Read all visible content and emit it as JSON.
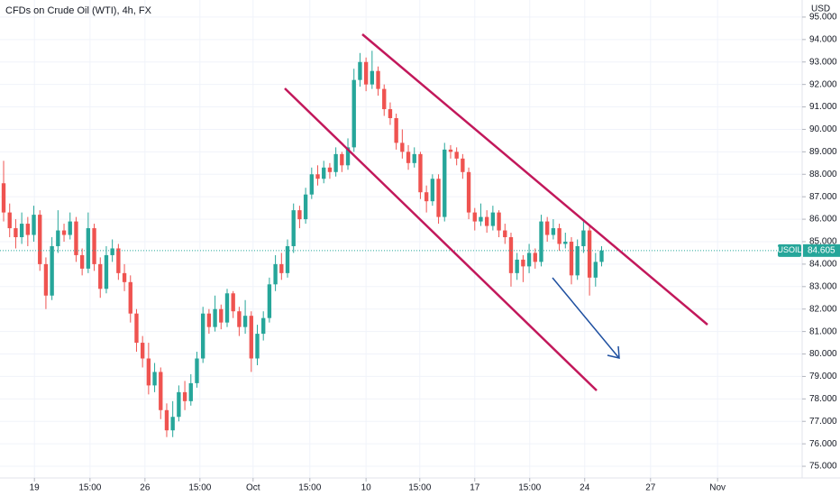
{
  "chart_data": {
    "type": "candlestick",
    "title": "CFDs on Crude Oil (WTI), 4h, FX",
    "currency": "USD",
    "symbol": "USOIL",
    "up_color": "#26a69a",
    "down_color": "#ef5350",
    "grid": true,
    "open": [
      87.6,
      86.3,
      85.6,
      85.2,
      85.8,
      85.3,
      86.2,
      84.0,
      82.6,
      84.8,
      85.5,
      85.3,
      85.9,
      84.4,
      83.8,
      85.6,
      84.0,
      82.9,
      84.4,
      84.7,
      83.6,
      83.2,
      81.8,
      80.5,
      79.8,
      78.6,
      79.2,
      77.5,
      76.6,
      77.2,
      78.3,
      77.9,
      78.7,
      79.8,
      81.8,
      81.2,
      82.0,
      81.4,
      82.7,
      81.9,
      81.2,
      81.7,
      79.8,
      80.9,
      81.6,
      83.1,
      84.0,
      83.6,
      84.8,
      86.4,
      86.0,
      87.1,
      88.0,
      87.8,
      88.3,
      88.1,
      88.9,
      88.4,
      89.2,
      92.2,
      93.0,
      92.0,
      92.6,
      91.8,
      90.9,
      90.5,
      89.4,
      89.0,
      88.5,
      88.9,
      87.2,
      86.8,
      87.8,
      86.1,
      89.1,
      89.0,
      88.7,
      88.1,
      86.3,
      85.9,
      86.1,
      85.7,
      86.3,
      85.5,
      85.2,
      83.6,
      84.2,
      83.9,
      84.5,
      84.1,
      85.9,
      85.3,
      85.6,
      84.9,
      85.0,
      83.5,
      84.8,
      85.5,
      83.4,
      84.1
    ],
    "high": [
      88.6,
      86.7,
      86.0,
      86.3,
      86.1,
      86.6,
      86.4,
      84.3,
      85.2,
      86.4,
      85.8,
      86.3,
      86.1,
      84.7,
      86.3,
      85.8,
      84.3,
      84.8,
      85.1,
      84.9,
      84.0,
      83.5,
      82.0,
      80.8,
      80.5,
      79.6,
      79.4,
      77.8,
      77.9,
      78.6,
      78.8,
      79.1,
      80.1,
      82.1,
      82.0,
      82.6,
      82.2,
      82.9,
      82.8,
      82.1,
      82.4,
      81.9,
      81.3,
      81.9,
      83.4,
      84.4,
      84.5,
      85.1,
      86.7,
      86.6,
      87.4,
      88.3,
      88.4,
      88.6,
      88.5,
      89.2,
      89.0,
      89.6,
      92.7,
      93.4,
      93.2,
      93.5,
      92.8,
      92.0,
      91.2,
      90.7,
      90.0,
      89.3,
      89.2,
      89.0,
      87.5,
      88.0,
      88.0,
      89.4,
      89.3,
      89.2,
      88.9,
      88.3,
      86.5,
      86.7,
      86.4,
      86.6,
      86.4,
      85.8,
      85.4,
      84.5,
      84.4,
      84.9,
      84.7,
      86.2,
      86.1,
      86.0,
      85.8,
      85.4,
      85.2,
      85.1,
      86.0,
      85.7,
      84.5,
      84.8
    ],
    "low": [
      85.9,
      85.2,
      84.7,
      84.9,
      84.8,
      85.0,
      83.7,
      82.0,
      82.4,
      84.5,
      85.0,
      85.1,
      84.1,
      83.5,
      83.6,
      83.7,
      82.5,
      82.7,
      84.1,
      83.3,
      82.8,
      81.4,
      80.1,
      79.4,
      78.2,
      78.3,
      77.1,
      76.3,
      76.3,
      77.0,
      77.5,
      77.7,
      78.5,
      79.6,
      80.9,
      81.0,
      81.1,
      81.2,
      81.6,
      80.8,
      80.9,
      79.2,
      79.5,
      80.6,
      81.4,
      82.8,
      83.3,
      83.4,
      84.5,
      85.6,
      85.8,
      86.9,
      87.5,
      87.6,
      87.8,
      87.9,
      88.1,
      88.2,
      89.0,
      91.9,
      91.7,
      91.8,
      91.5,
      90.6,
      90.2,
      89.1,
      88.7,
      88.2,
      88.3,
      86.9,
      86.3,
      86.6,
      85.8,
      85.9,
      88.7,
      88.4,
      87.8,
      86.0,
      85.5,
      85.7,
      85.4,
      85.5,
      85.2,
      84.9,
      83.0,
      83.3,
      83.2,
      83.6,
      83.8,
      83.9,
      85.0,
      85.1,
      84.6,
      84.7,
      83.1,
      83.3,
      84.5,
      82.6,
      83.0,
      83.9
    ],
    "close": [
      86.3,
      85.6,
      85.2,
      85.8,
      85.3,
      86.2,
      84.0,
      82.6,
      84.8,
      85.5,
      85.3,
      85.9,
      84.4,
      83.8,
      85.6,
      84.0,
      82.9,
      84.4,
      84.7,
      83.6,
      83.2,
      81.8,
      80.5,
      79.8,
      78.6,
      79.2,
      77.5,
      76.6,
      77.2,
      78.3,
      77.9,
      78.7,
      79.8,
      81.8,
      81.2,
      82.0,
      81.4,
      82.7,
      81.9,
      81.2,
      81.7,
      79.8,
      80.9,
      81.6,
      83.1,
      84.0,
      83.6,
      84.8,
      86.4,
      86.0,
      87.1,
      88.0,
      87.8,
      88.3,
      88.1,
      88.9,
      88.4,
      89.2,
      92.2,
      93.0,
      92.0,
      92.6,
      91.8,
      90.9,
      90.5,
      89.4,
      89.0,
      88.5,
      88.9,
      87.2,
      86.8,
      87.8,
      86.1,
      89.1,
      89.0,
      88.7,
      88.1,
      86.3,
      85.9,
      86.1,
      85.7,
      86.3,
      85.5,
      85.2,
      83.6,
      84.2,
      83.9,
      84.5,
      84.1,
      85.9,
      85.3,
      85.6,
      84.9,
      85.0,
      83.5,
      84.8,
      85.5,
      83.4,
      84.1,
      84.605
    ],
    "xlim": [
      -0.6,
      132.2
    ],
    "xticks": [
      {
        "value": 5.1,
        "label": "19"
      },
      {
        "value": 14.3,
        "label": "15:00"
      },
      {
        "value": 23.4,
        "label": "26"
      },
      {
        "value": 32.5,
        "label": "15:00"
      },
      {
        "value": 41.3,
        "label": "Oct"
      },
      {
        "value": 50.7,
        "label": "15:00"
      },
      {
        "value": 60,
        "label": "10"
      },
      {
        "value": 68.9,
        "label": "15:00"
      },
      {
        "value": 78,
        "label": "17"
      },
      {
        "value": 87.1,
        "label": "15:00"
      },
      {
        "value": 96.2,
        "label": "24"
      },
      {
        "value": 107.1,
        "label": "27"
      },
      {
        "value": 118.2,
        "label": "Nov"
      }
    ],
    "ylim": [
      74.48,
      95.76
    ],
    "yticks": [
      {
        "value": 75,
        "label": "75.000"
      },
      {
        "value": 76,
        "label": "76.000"
      },
      {
        "value": 77,
        "label": "77.000"
      },
      {
        "value": 78,
        "label": "78.000"
      },
      {
        "value": 79,
        "label": "79.000"
      },
      {
        "value": 80,
        "label": "80.000"
      },
      {
        "value": 81,
        "label": "81.000"
      },
      {
        "value": 82,
        "label": "82.000"
      },
      {
        "value": 83,
        "label": "83.000"
      },
      {
        "value": 84,
        "label": "84.000"
      },
      {
        "value": 85,
        "label": "85.000"
      },
      {
        "value": 86,
        "label": "86.000"
      },
      {
        "value": 87,
        "label": "87.000"
      },
      {
        "value": 88,
        "label": "88.000"
      },
      {
        "value": 89,
        "label": "89.000"
      },
      {
        "value": 90,
        "label": "90.000"
      },
      {
        "value": 91,
        "label": "91.000"
      },
      {
        "value": 92,
        "label": "92.000"
      },
      {
        "value": 93,
        "label": "93.000"
      },
      {
        "value": 94,
        "label": "94.000"
      },
      {
        "value": 95,
        "label": "95.000"
      }
    ]
  }
}
